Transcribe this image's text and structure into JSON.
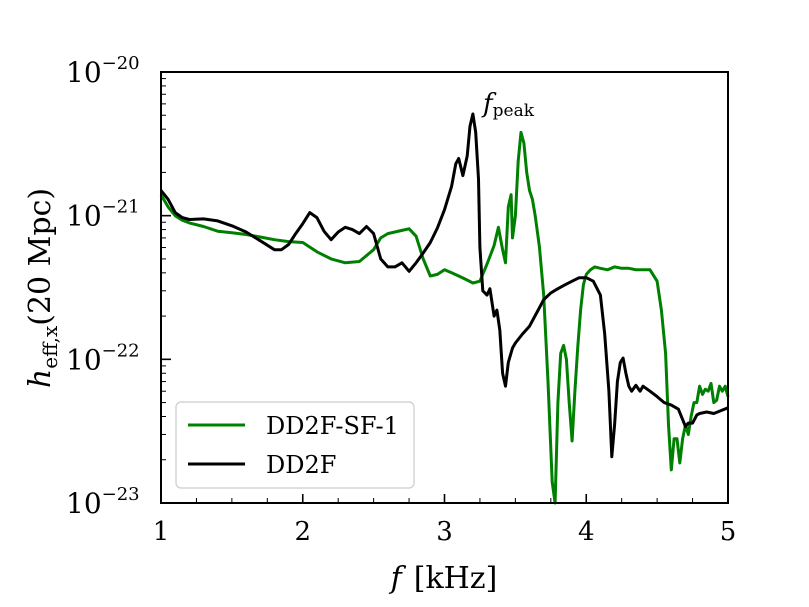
{
  "chart_data": {
    "type": "line",
    "xlabel_symbol": "f",
    "xlabel_unit": "[kHz]",
    "ylabel_symbol": "h",
    "ylabel_sub": "eff,x",
    "ylabel_rest": "(20 Mpc)",
    "xlim": [
      1,
      5
    ],
    "ylim": [
      1e-23,
      1e-20
    ],
    "yscale": "log",
    "x_ticks": [
      1,
      2,
      3,
      4,
      5
    ],
    "x_tick_labels": [
      "1",
      "2",
      "3",
      "4",
      "5"
    ],
    "y_ticks": [
      1e-23,
      1e-22,
      1e-21,
      1e-20
    ],
    "y_tick_base": "10",
    "y_tick_exponents": [
      "−23",
      "−22",
      "−21",
      "−20"
    ],
    "grid": false,
    "legend_position": "bottom-left",
    "annotation": {
      "symbol": "f",
      "sub": "peak",
      "at": [
        3.28,
        1e-20
      ]
    },
    "series": [
      {
        "name": "DD2F-SF-1",
        "color": "#008000",
        "x": [
          1.0,
          1.05,
          1.1,
          1.15,
          1.2,
          1.3,
          1.4,
          1.5,
          1.6,
          1.7,
          1.8,
          1.9,
          2.0,
          2.1,
          2.2,
          2.3,
          2.4,
          2.5,
          2.55,
          2.6,
          2.65,
          2.7,
          2.75,
          2.8,
          2.85,
          2.9,
          2.95,
          3.0,
          3.05,
          3.1,
          3.15,
          3.2,
          3.25,
          3.3,
          3.35,
          3.38,
          3.41,
          3.43,
          3.45,
          3.47,
          3.48,
          3.5,
          3.52,
          3.54,
          3.56,
          3.58,
          3.6,
          3.62,
          3.64,
          3.67,
          3.7,
          3.73,
          3.76,
          3.78,
          3.8,
          3.82,
          3.84,
          3.86,
          3.88,
          3.9,
          3.92,
          3.94,
          3.96,
          3.98,
          4.0,
          4.03,
          4.06,
          4.1,
          4.15,
          4.2,
          4.25,
          4.3,
          4.35,
          4.4,
          4.45,
          4.5,
          4.53,
          4.56,
          4.58,
          4.6,
          4.62,
          4.64,
          4.66,
          4.68,
          4.7,
          4.72,
          4.74,
          4.76,
          4.78,
          4.8,
          4.82,
          4.84,
          4.86,
          4.88,
          4.9,
          4.92,
          4.94,
          4.96,
          4.98,
          5.0
        ],
        "y": [
          1.4e-21,
          1.15e-21,
          1e-21,
          9.3e-22,
          8.9e-22,
          8.4e-22,
          7.8e-22,
          7.6e-22,
          7.4e-22,
          7.1e-22,
          6.8e-22,
          6.6e-22,
          6.5e-22,
          5.6e-22,
          5e-22,
          4.7e-22,
          4.8e-22,
          5.8e-22,
          7e-22,
          7.5e-22,
          7.7e-22,
          7.9e-22,
          8.1e-22,
          7.2e-22,
          5e-22,
          3.8e-22,
          3.9e-22,
          4.2e-22,
          4e-22,
          3.8e-22,
          3.6e-22,
          3.4e-22,
          3.5e-22,
          4.6e-22,
          6.2e-22,
          8.3e-22,
          5.8e-22,
          4.7e-22,
          1.15e-21,
          1.4e-21,
          7e-22,
          1e-21,
          2.4e-21,
          3.8e-21,
          3.2e-21,
          2e-21,
          1.5e-21,
          1.3e-21,
          1e-21,
          6e-22,
          2.8e-22,
          7e-23,
          1.4e-23,
          1e-23,
          5e-23,
          1.1e-22,
          1.25e-22,
          1e-22,
          5e-23,
          2.7e-23,
          6e-23,
          1.2e-22,
          2.2e-22,
          3.3e-22,
          3.9e-22,
          4.2e-22,
          4.4e-22,
          4.3e-22,
          4.2e-22,
          4.4e-22,
          4.3e-22,
          4.3e-22,
          4.2e-22,
          4.2e-22,
          4.2e-22,
          3.5e-22,
          2.2e-22,
          1.1e-22,
          3.5e-23,
          1.7e-23,
          2.8e-23,
          2.8e-23,
          1.9e-23,
          2.8e-23,
          3.5e-23,
          3e-23,
          4e-23,
          5e-23,
          5e-23,
          6.5e-23,
          5.7e-23,
          6.2e-23,
          6e-23,
          6.8e-23,
          5e-23,
          5.2e-23,
          6.5e-23,
          6e-23,
          6.5e-23,
          5.5e-23
        ]
      },
      {
        "name": "DD2F",
        "color": "#000000",
        "x": [
          1.0,
          1.05,
          1.1,
          1.15,
          1.2,
          1.3,
          1.4,
          1.5,
          1.6,
          1.7,
          1.8,
          1.85,
          1.9,
          1.95,
          2.0,
          2.05,
          2.1,
          2.15,
          2.2,
          2.25,
          2.3,
          2.35,
          2.4,
          2.45,
          2.5,
          2.55,
          2.6,
          2.65,
          2.7,
          2.75,
          2.8,
          2.85,
          2.9,
          2.95,
          3.0,
          3.05,
          3.08,
          3.1,
          3.13,
          3.16,
          3.18,
          3.2,
          3.22,
          3.24,
          3.25,
          3.27,
          3.3,
          3.32,
          3.35,
          3.37,
          3.39,
          3.41,
          3.43,
          3.45,
          3.48,
          3.5,
          3.55,
          3.6,
          3.65,
          3.7,
          3.75,
          3.8,
          3.85,
          3.9,
          3.95,
          4.0,
          4.05,
          4.1,
          4.13,
          4.16,
          4.18,
          4.2,
          4.22,
          4.24,
          4.26,
          4.28,
          4.3,
          4.32,
          4.35,
          4.38,
          4.4,
          4.45,
          4.5,
          4.55,
          4.6,
          4.65,
          4.7,
          4.72,
          4.75,
          4.78,
          4.8,
          4.85,
          4.9,
          4.95,
          5.0
        ],
        "y": [
          1.5e-21,
          1.3e-21,
          1.05e-21,
          9.7e-22,
          9.4e-22,
          9.5e-22,
          9.2e-22,
          8.5e-22,
          7.7e-22,
          6.7e-22,
          5.8e-22,
          5.8e-22,
          6.3e-22,
          7.5e-22,
          8.8e-22,
          1.05e-21,
          9.7e-22,
          7.8e-22,
          6.8e-22,
          7.7e-22,
          8.3e-22,
          8e-22,
          7.5e-22,
          8.4e-22,
          7.5e-22,
          5e-22,
          4.4e-22,
          4.4e-22,
          4.7e-22,
          4.1e-22,
          4.7e-22,
          5.5e-22,
          6.5e-22,
          8.2e-22,
          1.1e-21,
          1.6e-21,
          2.3e-21,
          2.5e-21,
          1.9e-21,
          2.6e-21,
          4.2e-21,
          5.1e-21,
          3.8e-21,
          1.8e-21,
          6e-22,
          3e-22,
          2.8e-22,
          3.1e-22,
          2e-22,
          2.2e-22,
          1.6e-22,
          8e-23,
          6.5e-23,
          9.5e-23,
          1.2e-22,
          1.3e-22,
          1.5e-22,
          1.7e-22,
          2.1e-22,
          2.6e-22,
          2.9e-22,
          3.1e-22,
          3.3e-22,
          3.5e-22,
          3.7e-22,
          3.7e-22,
          3.5e-22,
          2.8e-22,
          1.5e-22,
          6e-23,
          2.1e-23,
          3.5e-23,
          7e-23,
          9.5e-23,
          1.02e-22,
          8e-23,
          6.5e-23,
          6e-23,
          6.6e-23,
          6e-23,
          6.5e-23,
          6e-23,
          5.5e-23,
          5e-23,
          4.8e-23,
          4.5e-23,
          3.4e-23,
          3.6e-23,
          3.6e-23,
          4.1e-23,
          4.2e-23,
          4.3e-23,
          4.2e-23,
          4.4e-23,
          4.6e-23
        ]
      }
    ]
  }
}
